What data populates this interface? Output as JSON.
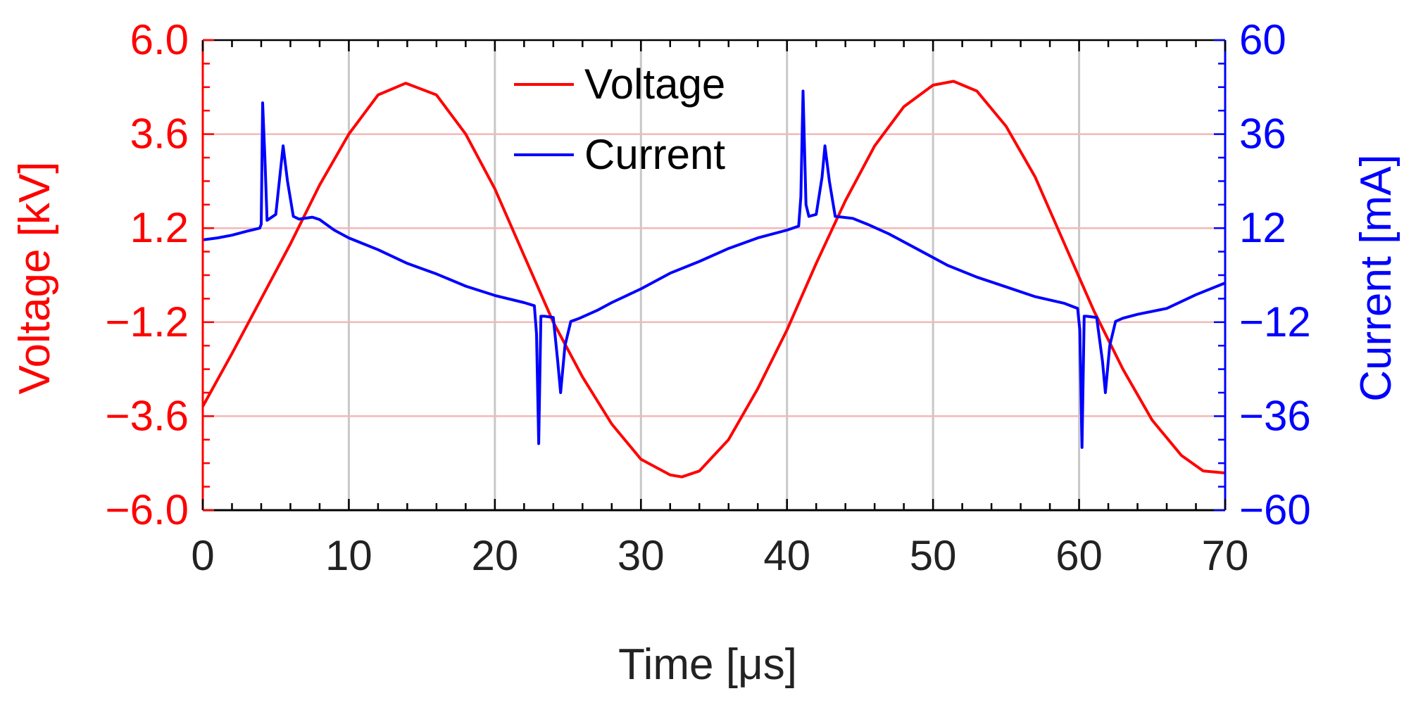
{
  "chart_data": {
    "type": "line",
    "title": "",
    "xlabel": "Time [μs]",
    "ylabel_left": "Voltage [kV]",
    "ylabel_right": "Current [mA]",
    "xlim": [
      0,
      70
    ],
    "ylim_left": [
      -6.0,
      6.0
    ],
    "ylim_right": [
      -60,
      60
    ],
    "x_ticks": [
      "0",
      "10",
      "20",
      "30",
      "40",
      "50",
      "60",
      "70"
    ],
    "y_left_ticks": [
      "−6.0",
      "−3.6",
      "−1.2",
      "1.2",
      "3.6",
      "6.0"
    ],
    "y_right_ticks": [
      "−60",
      "−36",
      "−12",
      "12",
      "36",
      "60"
    ],
    "grid": true,
    "legend_position": "top-center",
    "colors": {
      "voltage": "#ff0000",
      "current": "#0000ff",
      "grid_h": "#f4b8b8",
      "grid_v": "#c8c8c8"
    },
    "series": [
      {
        "name": "Voltage",
        "axis": "left",
        "x": [
          0,
          2,
          4,
          6,
          8,
          10,
          12,
          13.9,
          16,
          18,
          20,
          22,
          24,
          26,
          28,
          30,
          32,
          32.8,
          34,
          36,
          38,
          40,
          42,
          44,
          46,
          48,
          50,
          51.4,
          53,
          55,
          57,
          59,
          61,
          63,
          65,
          67,
          68.5,
          70
        ],
        "y": [
          -3.35,
          -2.0,
          -0.6,
          0.8,
          2.3,
          3.6,
          4.6,
          4.9,
          4.6,
          3.6,
          2.2,
          0.5,
          -1.2,
          -2.6,
          -3.8,
          -4.7,
          -5.1,
          -5.15,
          -5.0,
          -4.2,
          -2.9,
          -1.4,
          0.3,
          1.9,
          3.3,
          4.3,
          4.85,
          4.95,
          4.7,
          3.8,
          2.5,
          0.8,
          -0.9,
          -2.4,
          -3.7,
          -4.6,
          -5.0,
          -5.05
        ]
      },
      {
        "name": "Current",
        "axis": "right",
        "x": [
          0,
          1,
          2,
          3,
          3.9,
          4,
          4.1,
          4.25,
          4.4,
          5,
          5.3,
          5.5,
          5.8,
          6.2,
          6.6,
          7.5,
          8,
          9,
          10,
          12,
          14,
          16,
          18,
          20,
          22,
          22.7,
          22.85,
          23.0,
          23.15,
          23.4,
          24,
          24.3,
          24.5,
          24.8,
          25.2,
          25.8,
          27,
          28,
          30,
          32,
          34,
          36,
          38,
          40,
          40.8,
          40.95,
          41.1,
          41.3,
          41.5,
          42,
          42.4,
          42.6,
          42.9,
          43.3,
          43.8,
          44.5,
          45.5,
          47,
          49,
          51,
          53,
          55,
          57,
          59,
          59.9,
          60.05,
          60.2,
          60.35,
          60.5,
          61.2,
          61.6,
          61.8,
          62.1,
          62.5,
          63,
          64,
          66,
          68,
          70
        ],
        "y": [
          9,
          9.5,
          10.2,
          11.2,
          12,
          13,
          44,
          30,
          14,
          15.5,
          26,
          33,
          24,
          15,
          14.3,
          14.8,
          14.2,
          11.5,
          9.5,
          6.5,
          3.0,
          0.3,
          -2.8,
          -5.2,
          -7.0,
          -7.8,
          -15,
          -43,
          -10.5,
          -10.5,
          -10.8,
          -22,
          -30,
          -18,
          -11.8,
          -11.0,
          -9.0,
          -7.0,
          -3.5,
          0.5,
          3.5,
          6.8,
          9.5,
          11.5,
          12.5,
          20,
          47,
          18,
          15,
          15.5,
          25,
          33,
          24,
          15,
          14.8,
          14.5,
          13.0,
          10.5,
          6.5,
          2.5,
          -0.5,
          -3.0,
          -5.5,
          -7.2,
          -8.5,
          -14,
          -44,
          -10.5,
          -10.5,
          -10.8,
          -22,
          -30,
          -18,
          -11.8,
          -11.0,
          -10.0,
          -8.5,
          -5.0,
          -2.0
        ]
      }
    ]
  }
}
